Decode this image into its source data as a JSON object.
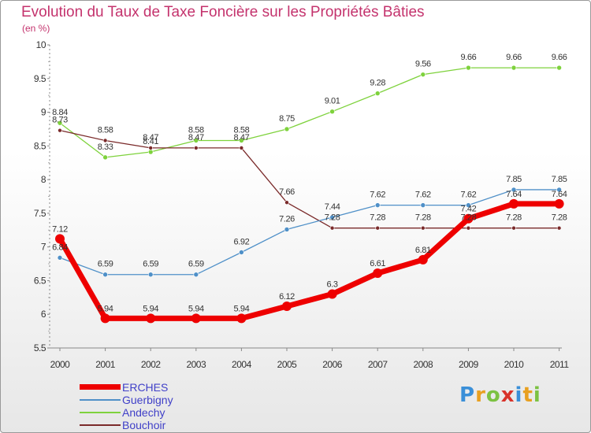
{
  "title": "Evolution du Taux de Taxe Foncière sur les Propriétés Bâties",
  "subtitle": "(en %)",
  "chart_data": {
    "type": "line",
    "title": "Evolution du Taux de Taxe Foncière sur les Propriétés Bâties",
    "ylabel": "(en %)",
    "xlabel": "",
    "ylim": [
      5.5,
      10
    ],
    "yticks": [
      5.5,
      6,
      6.5,
      7,
      7.5,
      8,
      8.5,
      9,
      9.5,
      10
    ],
    "ytick_labels": [
      "5.5",
      "6",
      "6.5",
      "7",
      "7.5",
      "8",
      "8.5",
      "9",
      "9.5",
      "10"
    ],
    "categories": [
      "2000",
      "2001",
      "2002",
      "2003",
      "2004",
      "2005",
      "2006",
      "2007",
      "2008",
      "2009",
      "2010",
      "2011"
    ],
    "grid": false,
    "legend_position": "bottom-left",
    "series": [
      {
        "name": "Andechy",
        "color": "#7ed23c",
        "values": [
          8.84,
          8.33,
          8.41,
          8.58,
          8.58,
          8.75,
          9.01,
          9.28,
          9.56,
          9.66,
          9.66,
          9.66
        ],
        "labels": [
          "8.84",
          "8.33",
          "8.41",
          "8.58",
          "8.58",
          "8.75",
          "9.01",
          "9.28",
          "9.56",
          "9.66",
          "9.66",
          "9.66"
        ]
      },
      {
        "name": "Bouchoir",
        "color": "#7a2a2a",
        "values": [
          8.73,
          8.58,
          8.47,
          8.47,
          8.47,
          7.66,
          7.28,
          7.28,
          7.28,
          7.28,
          7.28,
          7.28
        ],
        "labels": [
          "8.73",
          "8.58",
          "8.47",
          "8.47",
          "8.47",
          "7.66",
          "7.28",
          "7.28",
          "7.28",
          "7.28",
          "7.28",
          "7.28"
        ]
      },
      {
        "name": "Guerbigny",
        "color": "#4f90c8",
        "values": [
          6.84,
          6.59,
          6.59,
          6.59,
          6.92,
          7.26,
          7.44,
          7.62,
          7.62,
          7.62,
          7.85,
          7.85
        ],
        "labels": [
          "6.84",
          "6.59",
          "6.59",
          "6.59",
          "6.92",
          "7.26",
          "7.44",
          "7.62",
          "7.62",
          "7.62",
          "7.85",
          "7.85"
        ]
      },
      {
        "name": "ERCHES",
        "color": "#ee0000",
        "values": [
          7.12,
          5.94,
          5.94,
          5.94,
          5.94,
          6.12,
          6.3,
          6.61,
          6.81,
          7.42,
          7.64,
          7.64
        ],
        "labels": [
          "7.12",
          "5.94",
          "5.94",
          "5.94",
          "5.94",
          "6.12",
          "6.3",
          "6.61",
          "6.81",
          "7.42",
          "7.64",
          "7.64"
        ]
      }
    ]
  },
  "legend": {
    "items": [
      {
        "name": "ERCHES",
        "color": "#ee0000"
      },
      {
        "name": "Guerbigny",
        "color": "#4f90c8"
      },
      {
        "name": "Andechy",
        "color": "#7ed23c"
      },
      {
        "name": "Bouchoir",
        "color": "#7a2a2a"
      }
    ]
  },
  "logo": {
    "letters": [
      "P",
      "r",
      "o",
      "x",
      "i",
      "t",
      "i"
    ],
    "colors": [
      "#3a8fd8",
      "#e8a020",
      "#7cc242",
      "#d8322a",
      "#3a8fd8",
      "#e8a020",
      "#7cc242"
    ]
  }
}
